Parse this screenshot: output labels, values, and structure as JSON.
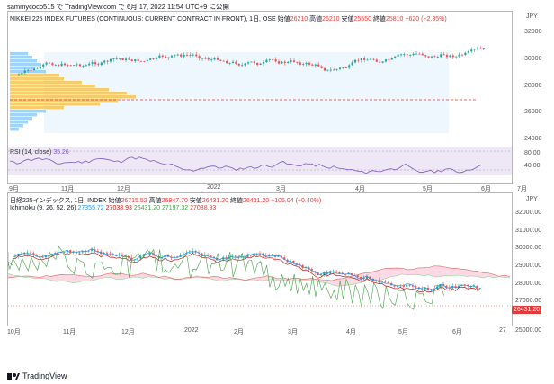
{
  "header": {
    "publisher_line": "sammycoco515 で TradingView.com で 6月 17, 2022 11:54 UTC+9 に公開"
  },
  "top_chart": {
    "title": "NIKKEI 225 INDEX FUTURES (CONTINUOUS: CURRENT CONTRACT IN FRONT), 1日, OSE",
    "ohlc": {
      "open_label": "始値",
      "open": "26210",
      "high_label": "高値",
      "high": "26210",
      "low_label": "安値",
      "low": "25550",
      "close_label": "終値",
      "close": "25810",
      "change": "−620 (−2.35%)"
    },
    "currency": "JPY",
    "y_ticks": [
      "32000",
      "30000",
      "28000",
      "26000",
      "24000"
    ],
    "rsi_label": "RSI (14, close)",
    "rsi_value": "35.26",
    "rsi_ticks": [
      "80.00",
      "40.00"
    ],
    "x_ticks": [
      "9月",
      "11月",
      "12月",
      "2022",
      "3月",
      "4月",
      "5月",
      "6月",
      "7月"
    ]
  },
  "bottom_chart": {
    "title": "日経225インデックス, 1日, INDEX",
    "ohlc": {
      "open_label": "始値",
      "open": "26715.52",
      "high_label": "高値",
      "high": "26947.70",
      "low_label": "安値",
      "low": "26431.20",
      "close_label": "終値",
      "close": "26431.20",
      "change": "+105.04 (+0.40%)"
    },
    "ichimoku_label": "Ichimoku (9, 26, 52, 26)",
    "ichimoku_values": [
      "27355.72",
      "27038.93",
      "26431.20",
      "27197.32",
      "27038.93"
    ],
    "currency": "JPY",
    "y_ticks": [
      "32000.00",
      "31000.00",
      "30000.00",
      "29000.00",
      "28000.00",
      "27000.00",
      "25000.00"
    ],
    "last_price": "26431.20",
    "x_ticks": [
      "10月",
      "11月",
      "12月",
      "2022",
      "2月",
      "3月",
      "4月",
      "5月",
      "6月",
      "27"
    ]
  },
  "footer": {
    "brand": "TradingView"
  },
  "colors": {
    "up": "#26a69a",
    "down": "#ef5350",
    "rsi": "#7e57c2",
    "tenkan": "#2196f3",
    "kijun": "#b71c1c",
    "chikou": "#43a047",
    "cloud_up": "#a5d6a7",
    "cloud_down": "#f8bbd0"
  }
}
